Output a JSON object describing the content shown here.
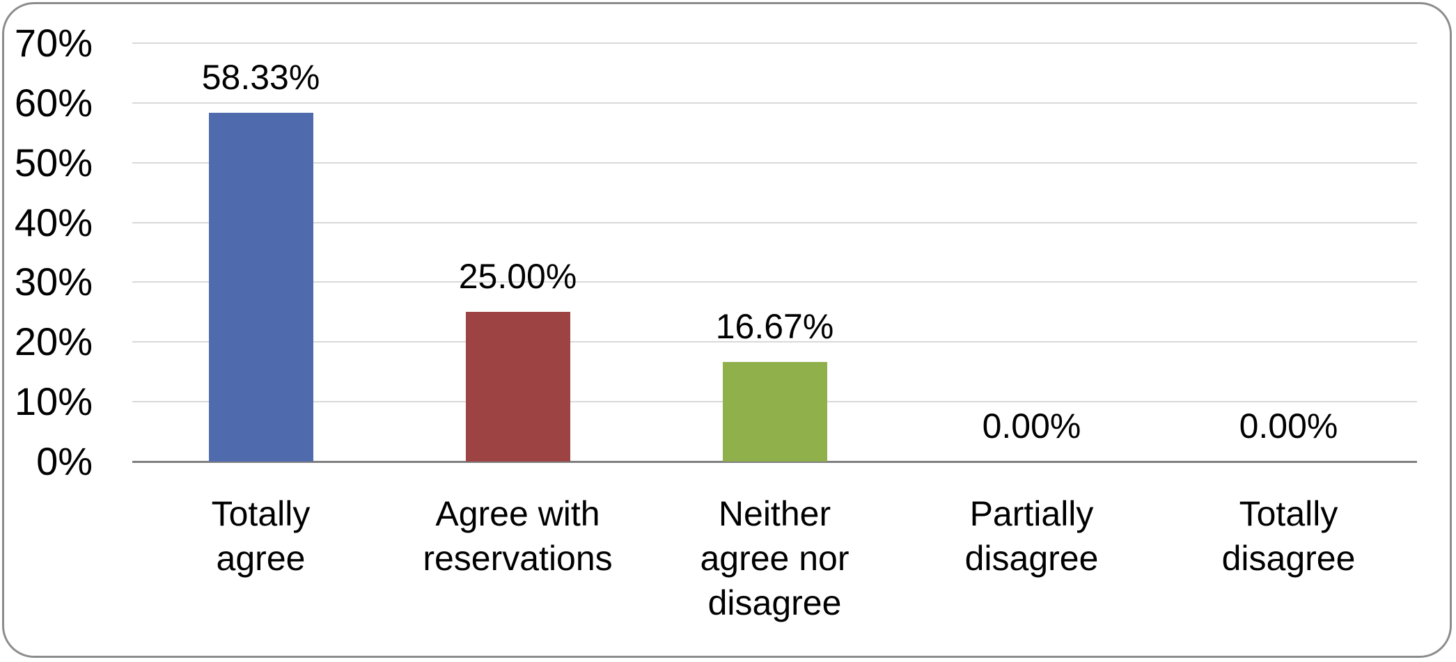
{
  "chart_data": {
    "type": "bar",
    "title": "",
    "xlabel": "",
    "ylabel": "",
    "categories": [
      "Totally\nagree",
      "Agree with\nreservations",
      "Neither\nagree nor\ndisagree",
      "Partially\ndisagree",
      "Totally\ndisagree"
    ],
    "values": [
      58.33,
      25.0,
      16.67,
      0,
      0
    ],
    "data_labels": [
      "58.33%",
      "25.00%",
      "16.67%",
      "0.00%",
      "0.00%"
    ],
    "bar_colors": [
      "#4F6BAD",
      "#9E4343",
      "#8FB04A",
      null,
      null
    ],
    "ylim": [
      0,
      70
    ],
    "yticks": [
      {
        "value": 70,
        "label": "70%"
      },
      {
        "value": 60,
        "label": "60%"
      },
      {
        "value": 50,
        "label": "50%"
      },
      {
        "value": 40,
        "label": "40%"
      },
      {
        "value": 30,
        "label": "30%"
      },
      {
        "value": 20,
        "label": "20%"
      },
      {
        "value": 10,
        "label": "10%"
      },
      {
        "value": 0,
        "label": "0%"
      }
    ],
    "grid": true,
    "legend": false
  },
  "frame": {
    "border_color": "#8C8C8C",
    "gridline_color": "#D9D9D9",
    "axis_line_color": "#7F7F7F",
    "background": "#FFFFFF",
    "text_color": "#000000"
  }
}
